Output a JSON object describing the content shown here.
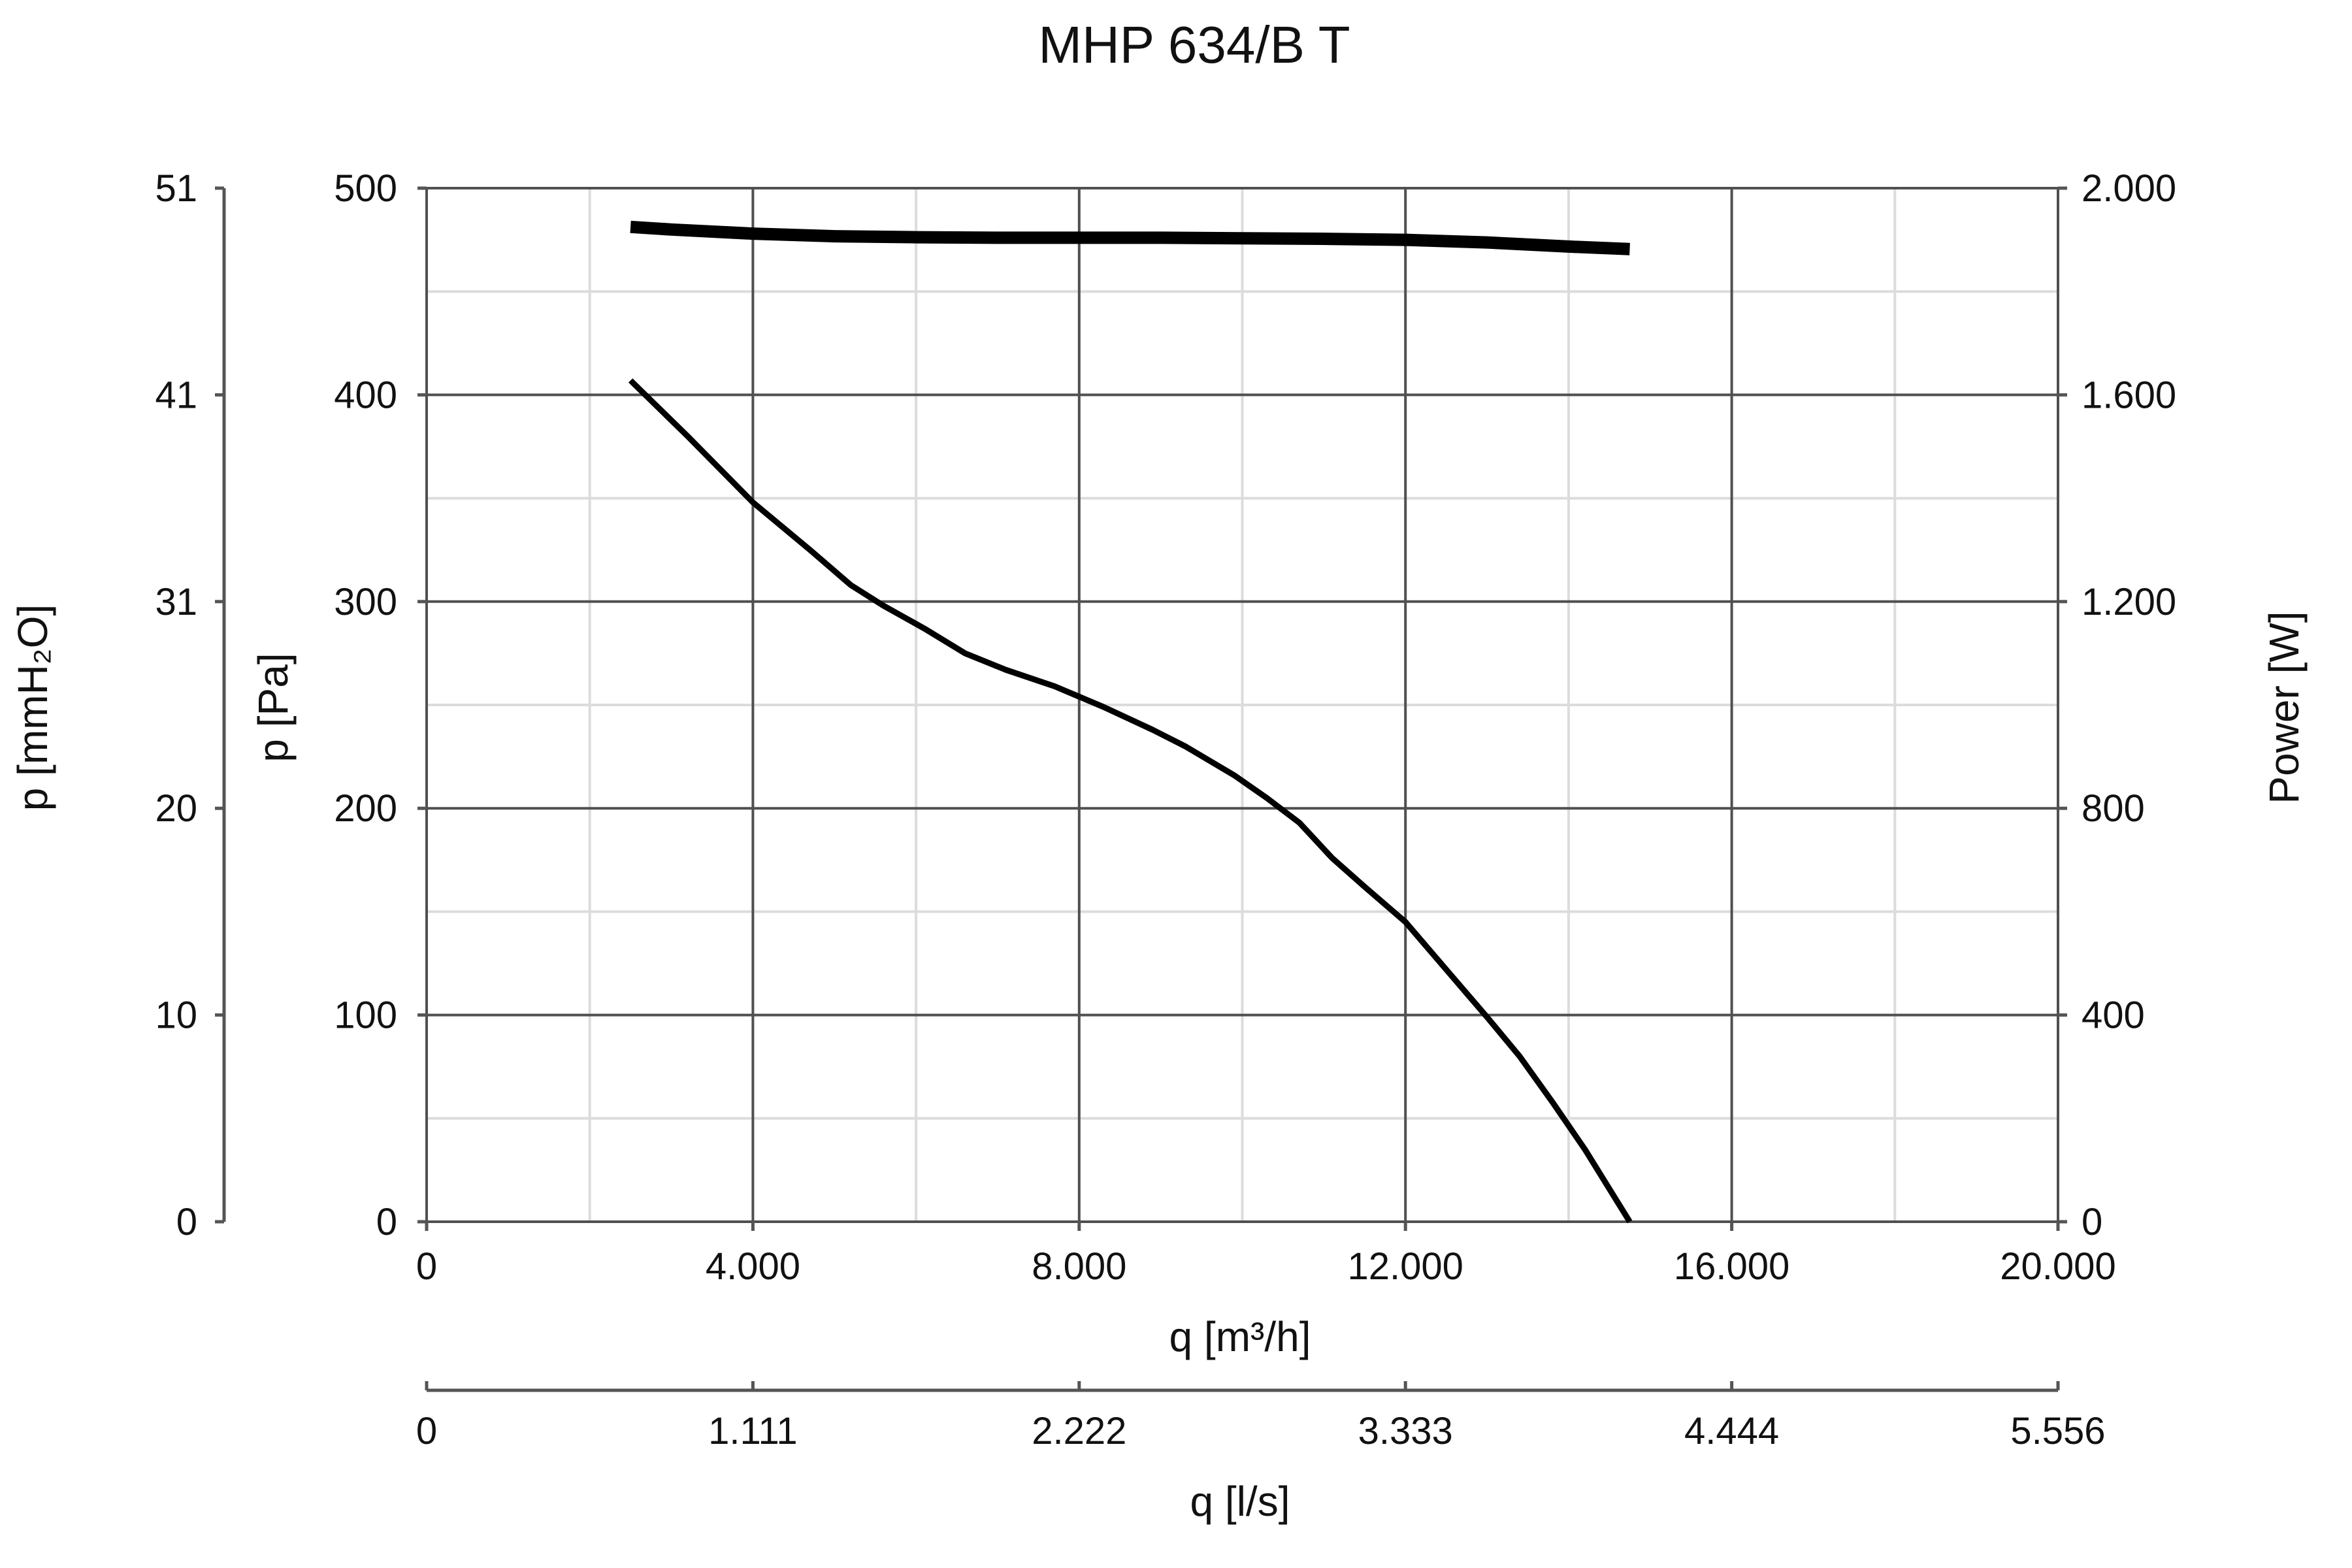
{
  "chart_data": {
    "type": "line",
    "title": "MHP 634/B T",
    "xlabel": "q [m³/h]",
    "x2label": "q [l/s]",
    "ylabel": "p [Pa]",
    "y2label": "p [mmH₂O]",
    "y3label": "Power [W]",
    "xlim": [
      0,
      20000
    ],
    "ylim": [
      0,
      500
    ],
    "powerlim": [
      0,
      2000
    ],
    "grid": true,
    "x_ticks": [
      "0",
      "4.000",
      "8.000",
      "12.000",
      "16.000",
      "20.000"
    ],
    "x2_ticks": [
      "0",
      "1.111",
      "2.222",
      "3.333",
      "4.444",
      "5.556"
    ],
    "y_ticks": [
      "0",
      "100",
      "200",
      "300",
      "400",
      "500"
    ],
    "y2_ticks": [
      "0",
      "10",
      "20",
      "31",
      "41",
      "51"
    ],
    "y3_ticks": [
      "0",
      "400",
      "800",
      "1.200",
      "1.600",
      "2.000"
    ],
    "series": [
      {
        "axis": "pressure",
        "color": "#000000",
        "x": [
          2500,
          3200,
          4000,
          4700,
          5200,
          5600,
          6100,
          6600,
          7100,
          7700,
          8300,
          8900,
          9300,
          9900,
          10300,
          10700,
          11100,
          11500,
          12000,
          12500,
          13000,
          13400,
          13800,
          14200,
          14750
        ],
        "y": [
          407,
          380,
          348,
          325,
          308,
          298,
          287,
          275,
          267,
          259,
          249,
          238,
          230,
          216,
          205,
          193,
          176,
          162,
          145,
          122,
          99,
          80,
          58,
          35,
          0
        ]
      },
      {
        "axis": "power",
        "color": "#000000",
        "x": [
          2500,
          3000,
          4000,
          5000,
          6000,
          7000,
          8000,
          9000,
          10000,
          11000,
          12000,
          13000,
          14000,
          14750
        ],
        "y": [
          1925,
          1920,
          1912,
          1907,
          1905,
          1904,
          1904,
          1904,
          1903,
          1902,
          1900,
          1895,
          1887,
          1882
        ]
      }
    ]
  }
}
